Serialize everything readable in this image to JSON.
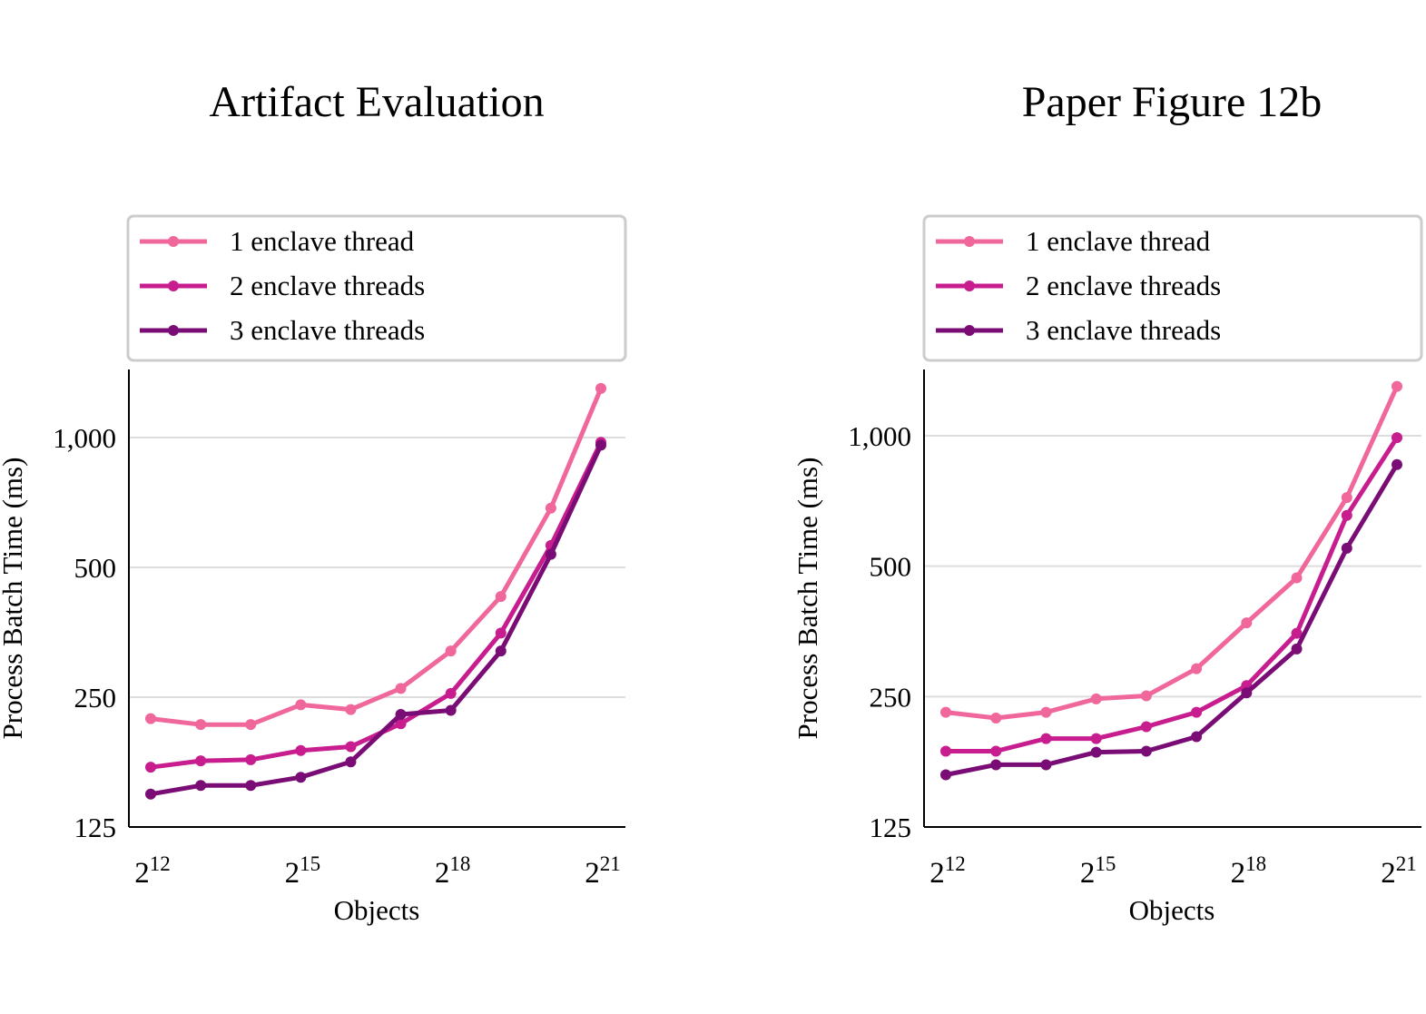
{
  "colors": {
    "series": [
      "#f0679b",
      "#c71d8e",
      "#7a0c75"
    ],
    "grid": "#dddddd",
    "legend_border": "#cccccc"
  },
  "chart_data": [
    {
      "type": "line",
      "title": "Artifact Evaluation",
      "xlabel": "Objects",
      "ylabel": "Process Batch Time (ms)",
      "x_scale": "log2",
      "y_scale": "log",
      "x": [
        4096,
        8192,
        16384,
        32768,
        65536,
        131072,
        262144,
        524288,
        1048576,
        2097152
      ],
      "xticks": [
        4096,
        32768,
        262144,
        2097152
      ],
      "xtick_labels": [
        {
          "base": "2",
          "exp": "12"
        },
        {
          "base": "2",
          "exp": "15"
        },
        {
          "base": "2",
          "exp": "18"
        },
        {
          "base": "2",
          "exp": "21"
        }
      ],
      "yticks": [
        125,
        250,
        500,
        1000
      ],
      "ytick_labels": [
        "125",
        "250",
        "500",
        "1,000"
      ],
      "ylim": [
        125,
        1430
      ],
      "grid": "horizontal",
      "legend_position": "top",
      "series": [
        {
          "name": "1 enclave thread",
          "values": [
            223,
            216,
            216,
            240,
            234,
            262,
            320,
            428,
            686,
            1300
          ]
        },
        {
          "name": "2 enclave threads",
          "values": [
            172,
            178,
            179,
            188,
            192,
            217,
            255,
            352,
            562,
            975
          ]
        },
        {
          "name": "3 enclave threads",
          "values": [
            149,
            156,
            156,
            163,
            177,
            228,
            233,
            320,
            536,
            960
          ]
        }
      ]
    },
    {
      "type": "line",
      "title": "Paper Figure 12b",
      "xlabel": "Objects",
      "ylabel": "Process Batch Time (ms)",
      "x_scale": "log2",
      "y_scale": "log",
      "x": [
        4096,
        8192,
        16384,
        32768,
        65536,
        131072,
        262144,
        524288,
        1048576,
        2097152
      ],
      "xticks": [
        4096,
        32768,
        262144,
        2097152
      ],
      "xtick_labels": [
        {
          "base": "2",
          "exp": "12"
        },
        {
          "base": "2",
          "exp": "15"
        },
        {
          "base": "2",
          "exp": "18"
        },
        {
          "base": "2",
          "exp": "21"
        }
      ],
      "yticks": [
        125,
        250,
        500,
        1000
      ],
      "ytick_labels": [
        "125",
        "250",
        "500",
        "1,000"
      ],
      "ylim": [
        125,
        1430
      ],
      "grid": "horizontal",
      "legend_position": "top",
      "series": [
        {
          "name": "1 enclave thread",
          "values": [
            230,
            223,
            230,
            247,
            251,
            290,
            370,
            470,
            720,
            1300
          ]
        },
        {
          "name": "2 enclave threads",
          "values": [
            187,
            187,
            200,
            200,
            213,
            230,
            265,
            350,
            655,
            990
          ]
        },
        {
          "name": "3 enclave threads",
          "values": [
            165,
            174,
            174,
            186,
            187,
            202,
            255,
            322,
            550,
            858
          ]
        }
      ]
    }
  ]
}
